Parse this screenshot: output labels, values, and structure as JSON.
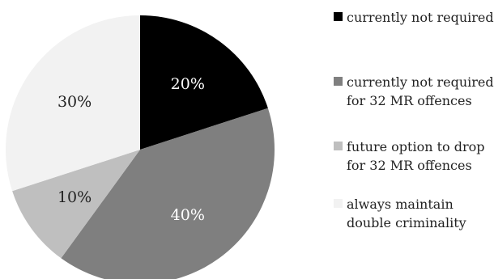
{
  "chart_data": {
    "type": "pie",
    "slices": [
      {
        "label": "currently not required",
        "value": 20,
        "value_label": "20%",
        "color": "#000000",
        "text_color": "#ffffff"
      },
      {
        "label": "currently not required for 32 MR offences",
        "value": 40,
        "value_label": "40%",
        "color": "#7f7f7f",
        "text_color": "#ffffff"
      },
      {
        "label": "future option to drop for 32 MR offences",
        "value": 10,
        "value_label": "10%",
        "color": "#bfbfbf",
        "text_color": "#222222"
      },
      {
        "label": "always maintain double criminality",
        "value": 30,
        "value_label": "30%",
        "color": "#f2f2f2",
        "text_color": "#222222"
      }
    ],
    "start_angle": "12 o'clock",
    "direction": "clockwise",
    "legend_position": "right"
  }
}
